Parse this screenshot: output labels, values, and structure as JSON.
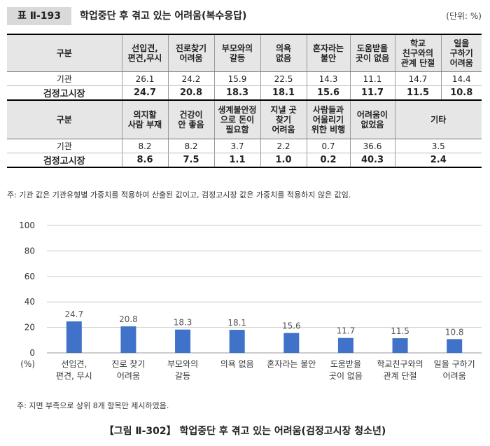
{
  "table": {
    "number": "표 Ⅱ-193",
    "title": "학업중단 후 겪고 있는 어려움(복수응답)",
    "unit": "(단위: %)",
    "header1": [
      "구분",
      "선입견,\n편견,무시",
      "진로찾기\n어려움",
      "부모와의\n갈등",
      "의욕\n없음",
      "혼자라는\n불안",
      "도움받을\n곳이 없음",
      "학교\n친구와의\n관계 단절",
      "일을\n구하기\n어려움"
    ],
    "rows1": [
      {
        "label": "기관",
        "values": [
          "26.1",
          "24.2",
          "15.9",
          "22.5",
          "14.3",
          "11.1",
          "14.7",
          "14.4"
        ]
      },
      {
        "label": "검정고시장",
        "values": [
          "24.7",
          "20.8",
          "18.3",
          "18.1",
          "15.6",
          "11.7",
          "11.5",
          "10.8"
        ]
      }
    ],
    "header2": [
      "구분",
      "의지할\n사람 부재",
      "건강이\n안 좋음",
      "생계불안정\n으로 돈이\n필요함",
      "지낼 곳\n찾기\n어려움",
      "사람들과\n어울리기\n위한 비행",
      "어려움이\n없었음",
      "기타"
    ],
    "rows2": [
      {
        "label": "기관",
        "values": [
          "8.2",
          "8.2",
          "3.7",
          "2.2",
          "0.7",
          "36.6",
          "3.5"
        ]
      },
      {
        "label": "검정고시장",
        "values": [
          "8.6",
          "7.5",
          "1.1",
          "1.0",
          "0.2",
          "40.3",
          "2.4"
        ]
      }
    ],
    "note": "주: 기관 값은 기관유형별 가중치를 적용하여 산출된 값이고, 검정고시장 값은 가중치를 적용하지 않은 값임."
  },
  "chart_data": {
    "type": "bar",
    "categories": [
      "선입견,\n편견, 무시",
      "진로 찾기\n어려움",
      "부모와의\n갈등",
      "의욕 없음",
      "혼자라는 불안",
      "도움받을\n곳이 없음",
      "학교친구와의\n관계 단절",
      "일을 구하기\n어려움"
    ],
    "values": [
      24.7,
      20.8,
      18.3,
      18.1,
      15.6,
      11.7,
      11.5,
      10.8
    ],
    "value_labels": [
      "24.7",
      "20.8",
      "18.3",
      "18.1",
      "15.6",
      "11.7",
      "11.5",
      "10.8"
    ],
    "ylim": [
      0,
      100
    ],
    "yticks": [
      0,
      20,
      40,
      60,
      80,
      100
    ],
    "y_unit_label": "(%)",
    "grid": true,
    "bar_color": "#3f72c8",
    "grid_color": "#cccccc"
  },
  "chart_note": "주: 지면 부족으로 상위 8개 항목만 제시하였음.",
  "figure_caption": "【그림 Ⅱ-302】 학업중단 후 겪고 있는 어려움(검정고시장 청소년)"
}
